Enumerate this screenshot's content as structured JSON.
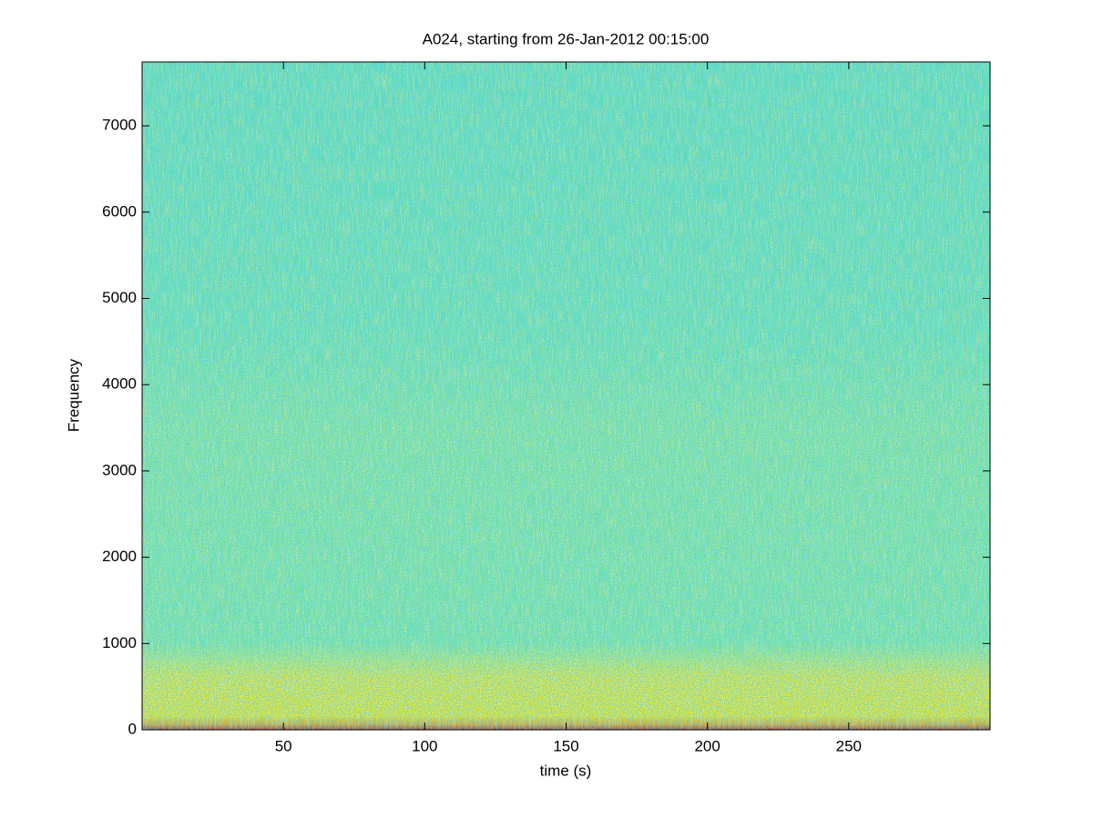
{
  "chart_data": {
    "type": "spectrogram",
    "title": "A024, starting from 26-Jan-2012 00:15:00",
    "x_label": "time (s)",
    "y_label": "Frequency",
    "xlim": [
      0,
      300
    ],
    "xticks": [
      50,
      100,
      150,
      200,
      250
    ],
    "ylim": [
      0,
      7740
    ],
    "yticks": [
      0,
      1000,
      2000,
      3000,
      4000,
      5000,
      6000,
      7000
    ]
  }
}
